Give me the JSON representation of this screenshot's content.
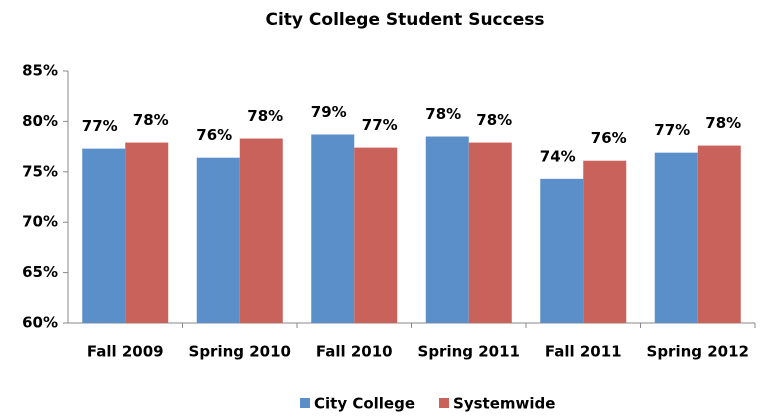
{
  "chart_data": {
    "type": "bar",
    "title": "City College Student Success",
    "categories": [
      "Fall 2009",
      "Spring 2010",
      "Fall 2010",
      "Spring 2011",
      "Fall 2011",
      "Spring 2012"
    ],
    "series": [
      {
        "name": "City College",
        "color": "#5b8fc9",
        "values": [
          77.3,
          76.4,
          78.7,
          78.5,
          74.3,
          76.9
        ],
        "value_labels": [
          "77%",
          "76%",
          "79%",
          "78%",
          "74%",
          "77%"
        ]
      },
      {
        "name": "Systemwide",
        "color": "#c9625b",
        "values": [
          77.9,
          78.3,
          77.4,
          77.9,
          76.1,
          77.6
        ],
        "value_labels": [
          "78%",
          "78%",
          "77%",
          "78%",
          "76%",
          "78%"
        ]
      }
    ],
    "ylim": [
      60,
      85
    ],
    "yticks": [
      {
        "value": 60,
        "label": "60%"
      },
      {
        "value": 65,
        "label": "65%"
      },
      {
        "value": 70,
        "label": "70%"
      },
      {
        "value": 75,
        "label": "75%"
      },
      {
        "value": 80,
        "label": "80%"
      },
      {
        "value": 85,
        "label": "85%"
      }
    ],
    "grid": false,
    "legend": "bottom"
  }
}
